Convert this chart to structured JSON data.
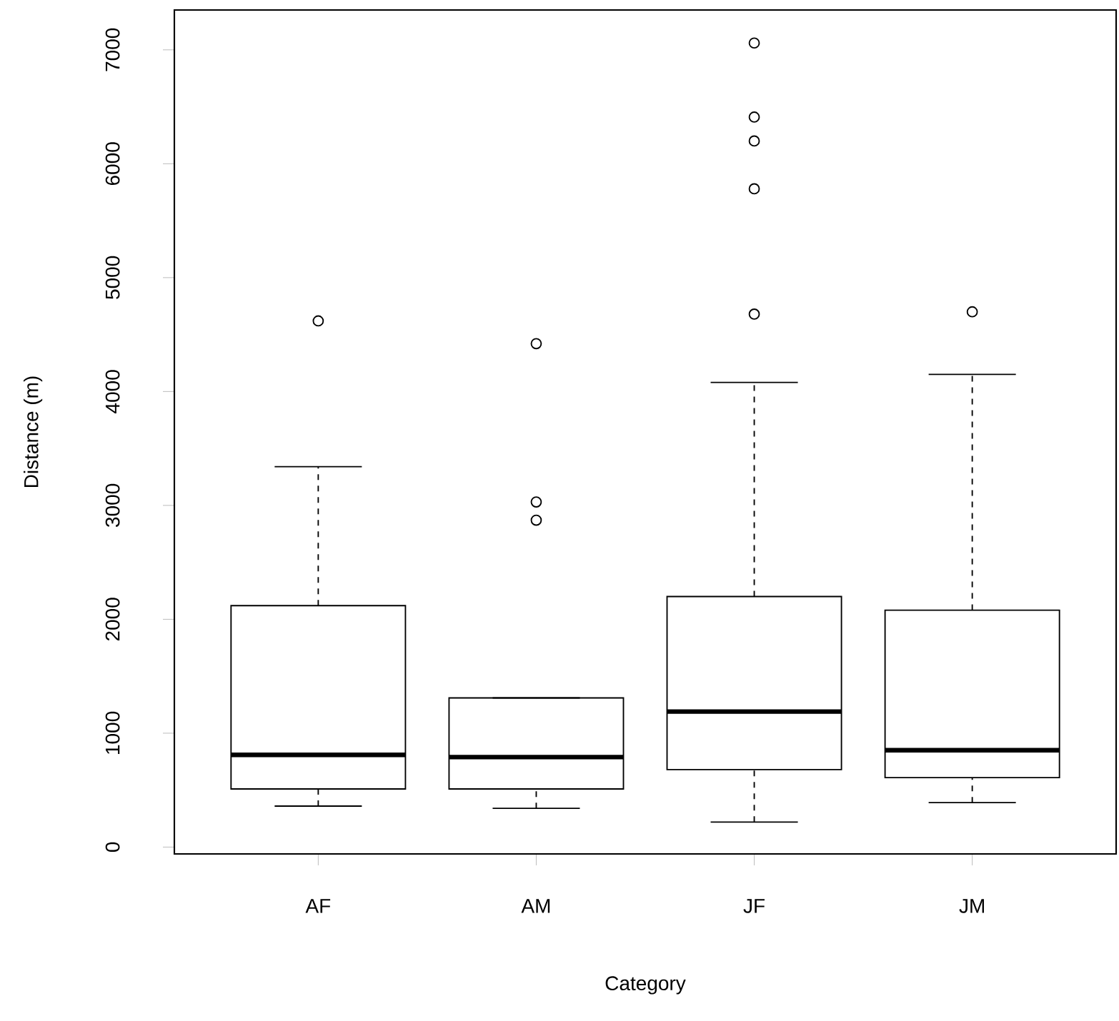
{
  "chart_data": {
    "type": "box",
    "xlabel": "Category",
    "ylabel": "Distance (m)",
    "categories": [
      "AF",
      "AM",
      "JF",
      "JM"
    ],
    "boxes": [
      {
        "low": 360,
        "q1": 510,
        "median": 810,
        "q3": 2120,
        "high": 3340,
        "outliers": [
          4620
        ]
      },
      {
        "low": 340,
        "q1": 510,
        "median": 790,
        "q3": 1310,
        "high": 1310,
        "outliers": [
          4420,
          3030,
          2870
        ]
      },
      {
        "low": 220,
        "q1": 680,
        "median": 1190,
        "q3": 2200,
        "high": 4080,
        "outliers": [
          7060,
          6410,
          6200,
          5780,
          4680
        ]
      },
      {
        "low": 390,
        "q1": 610,
        "median": 850,
        "q3": 2080,
        "high": 4150,
        "outliers": [
          4700
        ]
      }
    ],
    "ylim": [
      -60,
      7350
    ],
    "yticks": [
      0,
      1000,
      2000,
      3000,
      4000,
      5000,
      6000,
      7000
    ],
    "marker": "circle"
  }
}
